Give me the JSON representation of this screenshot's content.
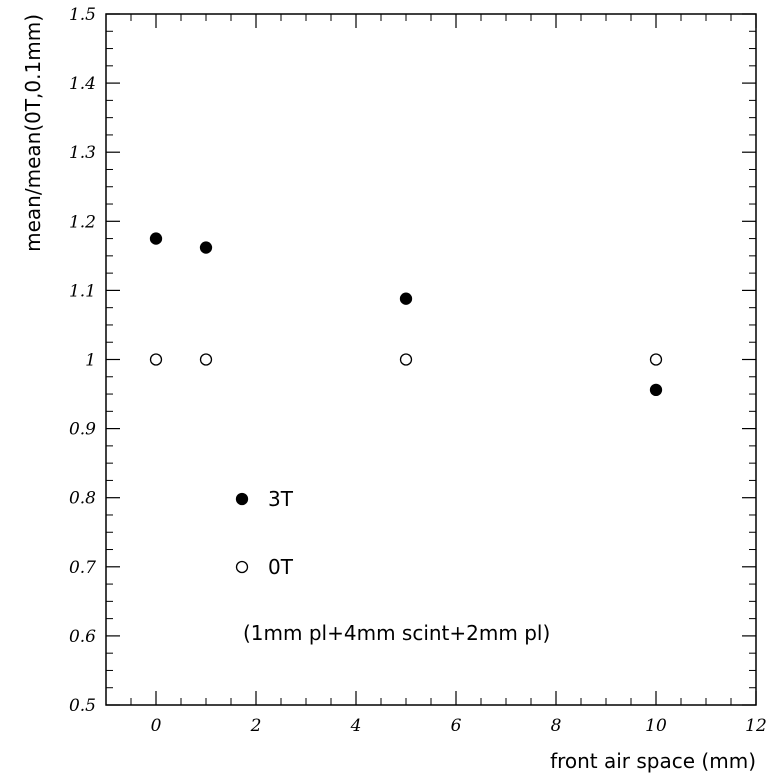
{
  "chart_data": {
    "type": "scatter",
    "title": "",
    "xlabel": "front air space (mm)",
    "ylabel": "mean/mean(0T,0.1mm)",
    "xlim": [
      -1,
      12
    ],
    "ylim": [
      0.5,
      1.5
    ],
    "xticks": [
      0,
      2,
      4,
      6,
      8,
      10,
      12
    ],
    "yticks": [
      0.5,
      0.6,
      0.7,
      0.8,
      0.9,
      1,
      1.1,
      1.2,
      1.3,
      1.4,
      1.5
    ],
    "series": [
      {
        "name": "3T",
        "marker": "filled-circle",
        "color": "#000000",
        "x": [
          0,
          1,
          5,
          10
        ],
        "y": [
          1.175,
          1.162,
          1.088,
          0.956
        ]
      },
      {
        "name": "0T",
        "marker": "open-circle",
        "color": "#000000",
        "x": [
          0,
          1,
          5,
          10
        ],
        "y": [
          1.0,
          1.0,
          1.0,
          1.0
        ]
      }
    ],
    "legend_position": "inside-lower-left",
    "annotations": [
      "(1mm pl+4mm scint+2mm pl)"
    ],
    "grid": false
  }
}
